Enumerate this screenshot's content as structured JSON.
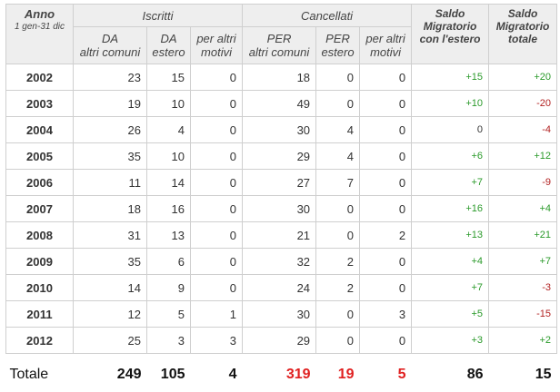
{
  "header": {
    "year_title": "Anno",
    "year_sub": "1 gen-31 dic",
    "iscritti": "Iscritti",
    "cancellati": "Cancellati",
    "iscritti_cols": [
      {
        "l1": "DA",
        "l2": "altri comuni"
      },
      {
        "l1": "DA",
        "l2": "estero"
      },
      {
        "l1": "per altri",
        "l2": "motivi"
      }
    ],
    "cancellati_cols": [
      {
        "l1": "PER",
        "l2": "altri comuni"
      },
      {
        "l1": "PER",
        "l2": "estero"
      },
      {
        "l1": "per altri",
        "l2": "motivi"
      }
    ],
    "saldo_estero": {
      "l1": "Saldo",
      "l2": "Migratorio",
      "l3": "con l'estero"
    },
    "saldo_totale": {
      "l1": "Saldo",
      "l2": "Migratorio",
      "l3": "totale"
    }
  },
  "rows": [
    {
      "year": "2002",
      "da_comuni": "23",
      "da_estero": "15",
      "iscr_altri": "0",
      "per_comuni": "18",
      "per_estero": "0",
      "canc_altri": "0",
      "saldo_estero": "+15",
      "saldo_totale": "+20"
    },
    {
      "year": "2003",
      "da_comuni": "19",
      "da_estero": "10",
      "iscr_altri": "0",
      "per_comuni": "49",
      "per_estero": "0",
      "canc_altri": "0",
      "saldo_estero": "+10",
      "saldo_totale": "-20"
    },
    {
      "year": "2004",
      "da_comuni": "26",
      "da_estero": "4",
      "iscr_altri": "0",
      "per_comuni": "30",
      "per_estero": "4",
      "canc_altri": "0",
      "saldo_estero": "0",
      "saldo_totale": "-4"
    },
    {
      "year": "2005",
      "da_comuni": "35",
      "da_estero": "10",
      "iscr_altri": "0",
      "per_comuni": "29",
      "per_estero": "4",
      "canc_altri": "0",
      "saldo_estero": "+6",
      "saldo_totale": "+12"
    },
    {
      "year": "2006",
      "da_comuni": "11",
      "da_estero": "14",
      "iscr_altri": "0",
      "per_comuni": "27",
      "per_estero": "7",
      "canc_altri": "0",
      "saldo_estero": "+7",
      "saldo_totale": "-9"
    },
    {
      "year": "2007",
      "da_comuni": "18",
      "da_estero": "16",
      "iscr_altri": "0",
      "per_comuni": "30",
      "per_estero": "0",
      "canc_altri": "0",
      "saldo_estero": "+16",
      "saldo_totale": "+4"
    },
    {
      "year": "2008",
      "da_comuni": "31",
      "da_estero": "13",
      "iscr_altri": "0",
      "per_comuni": "21",
      "per_estero": "0",
      "canc_altri": "2",
      "saldo_estero": "+13",
      "saldo_totale": "+21"
    },
    {
      "year": "2009",
      "da_comuni": "35",
      "da_estero": "6",
      "iscr_altri": "0",
      "per_comuni": "32",
      "per_estero": "2",
      "canc_altri": "0",
      "saldo_estero": "+4",
      "saldo_totale": "+7"
    },
    {
      "year": "2010",
      "da_comuni": "14",
      "da_estero": "9",
      "iscr_altri": "0",
      "per_comuni": "24",
      "per_estero": "2",
      "canc_altri": "0",
      "saldo_estero": "+7",
      "saldo_totale": "-3"
    },
    {
      "year": "2011",
      "da_comuni": "12",
      "da_estero": "5",
      "iscr_altri": "1",
      "per_comuni": "30",
      "per_estero": "0",
      "canc_altri": "3",
      "saldo_estero": "+5",
      "saldo_totale": "-15"
    },
    {
      "year": "2012",
      "da_comuni": "25",
      "da_estero": "3",
      "iscr_altri": "3",
      "per_comuni": "29",
      "per_estero": "0",
      "canc_altri": "0",
      "saldo_estero": "+3",
      "saldo_totale": "+2"
    }
  ],
  "totals": {
    "label": "Totale",
    "da_comuni": "249",
    "da_estero": "105",
    "iscr_altri": "4",
    "per_comuni": "319",
    "per_estero": "19",
    "canc_altri": "5",
    "saldo_estero": "86",
    "saldo_totale": "15"
  },
  "colors": {
    "positive": "#2a9a2a",
    "negative": "#b22222",
    "cancellati_total": "#e02020",
    "header_bg": "#eeeeee"
  }
}
